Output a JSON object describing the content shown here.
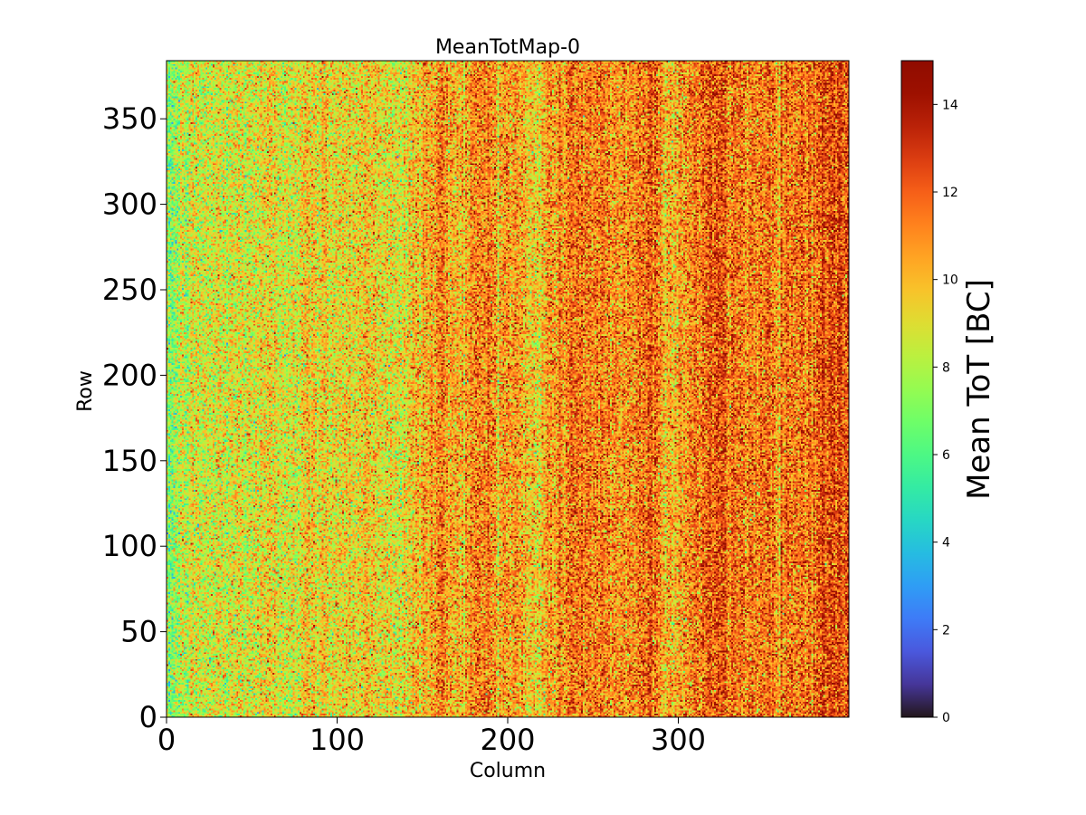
{
  "chart_data": {
    "type": "heatmap",
    "title": "MeanTotMap-0",
    "xlabel": "Column",
    "ylabel": "Row",
    "xlim": [
      0,
      400
    ],
    "ylim": [
      0,
      384
    ],
    "grid": false,
    "x_ticks": [
      0,
      100,
      200,
      300
    ],
    "y_ticks": [
      0,
      50,
      100,
      150,
      200,
      250,
      300,
      350
    ],
    "colorbar": {
      "label": "Mean ToT [BC]",
      "range": [
        0,
        15
      ],
      "ticks": [
        0,
        2,
        4,
        6,
        8,
        10,
        12,
        14
      ],
      "colormap": "turbo"
    },
    "value_profile": {
      "description": "Per-pixel mean ToT; noisy map whose mean rises with column",
      "mean_by_column": [
        [
          0,
          8.3
        ],
        [
          100,
          9.4
        ],
        [
          200,
          10.6
        ],
        [
          300,
          11.2
        ],
        [
          400,
          11.8
        ]
      ],
      "noise_std": 1.6,
      "lighter_column_bands": [
        0,
        135,
        215,
        295
      ],
      "darker_column_bands": [
        160,
        185,
        240,
        285,
        320,
        390
      ]
    }
  }
}
